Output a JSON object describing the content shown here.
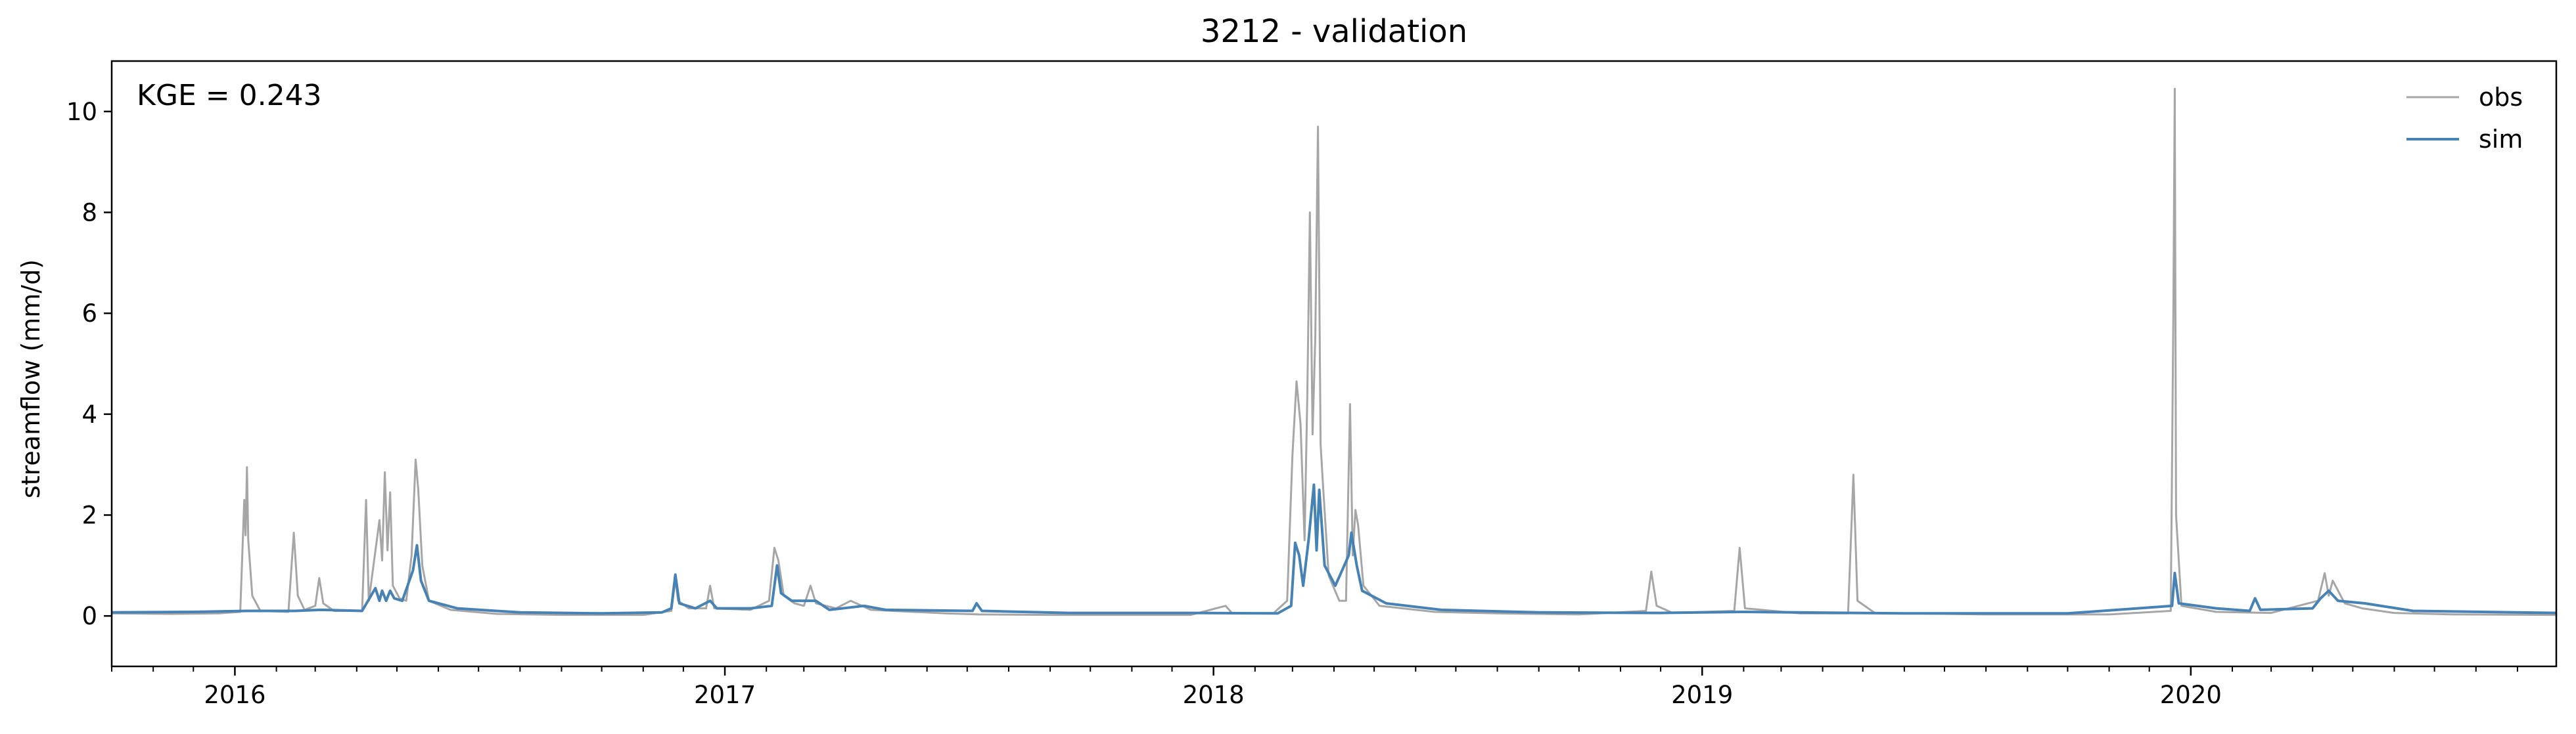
{
  "chart_data": {
    "type": "line",
    "title": "3212 - validation",
    "xlabel": "",
    "ylabel": "streamflow (mm/d)",
    "annotation": "KGE = 0.243",
    "xlim": [
      "2015-10-01",
      "2020-09-30"
    ],
    "ylim": [
      -1.0,
      11.0
    ],
    "yticks": [
      0,
      2,
      4,
      6,
      8,
      10
    ],
    "xticks": [
      {
        "date": "2016-01-01",
        "label": "2016"
      },
      {
        "date": "2017-01-01",
        "label": "2017"
      },
      {
        "date": "2018-01-01",
        "label": "2018"
      },
      {
        "date": "2019-01-01",
        "label": "2019"
      },
      {
        "date": "2020-01-01",
        "label": "2020"
      }
    ],
    "grid": false,
    "legend": {
      "position": "top-right"
    },
    "series": [
      {
        "name": "obs",
        "color": "#a6a6a6",
        "points": [
          [
            "2015-10-01",
            0.05
          ],
          [
            "2015-11-15",
            0.04
          ],
          [
            "2015-12-20",
            0.05
          ],
          [
            "2016-01-05",
            0.08
          ],
          [
            "2016-01-08",
            2.3
          ],
          [
            "2016-01-09",
            1.6
          ],
          [
            "2016-01-10",
            2.95
          ],
          [
            "2016-01-11",
            1.5
          ],
          [
            "2016-01-14",
            0.4
          ],
          [
            "2016-01-20",
            0.1
          ],
          [
            "2016-02-10",
            0.08
          ],
          [
            "2016-02-14",
            1.65
          ],
          [
            "2016-02-17",
            0.4
          ],
          [
            "2016-02-22",
            0.12
          ],
          [
            "2016-03-01",
            0.2
          ],
          [
            "2016-03-04",
            0.75
          ],
          [
            "2016-03-07",
            0.25
          ],
          [
            "2016-03-15",
            0.1
          ],
          [
            "2016-04-05",
            0.1
          ],
          [
            "2016-04-08",
            2.3
          ],
          [
            "2016-04-10",
            0.3
          ],
          [
            "2016-04-16",
            1.5
          ],
          [
            "2016-04-18",
            1.9
          ],
          [
            "2016-04-20",
            1.1
          ],
          [
            "2016-04-22",
            2.85
          ],
          [
            "2016-04-24",
            1.3
          ],
          [
            "2016-04-26",
            2.45
          ],
          [
            "2016-04-28",
            0.6
          ],
          [
            "2016-05-03",
            0.35
          ],
          [
            "2016-05-08",
            0.3
          ],
          [
            "2016-05-12",
            1.2
          ],
          [
            "2016-05-15",
            3.1
          ],
          [
            "2016-05-17",
            2.5
          ],
          [
            "2016-05-20",
            1.0
          ],
          [
            "2016-05-25",
            0.3
          ],
          [
            "2016-06-10",
            0.12
          ],
          [
            "2016-07-15",
            0.04
          ],
          [
            "2016-09-01",
            0.02
          ],
          [
            "2016-11-01",
            0.02
          ],
          [
            "2016-11-22",
            0.1
          ],
          [
            "2016-11-25",
            0.72
          ],
          [
            "2016-11-27",
            0.3
          ],
          [
            "2016-12-05",
            0.15
          ],
          [
            "2016-12-18",
            0.15
          ],
          [
            "2016-12-21",
            0.6
          ],
          [
            "2016-12-24",
            0.15
          ],
          [
            "2017-01-20",
            0.12
          ],
          [
            "2017-02-03",
            0.3
          ],
          [
            "2017-02-07",
            1.35
          ],
          [
            "2017-02-10",
            1.1
          ],
          [
            "2017-02-14",
            0.4
          ],
          [
            "2017-02-22",
            0.25
          ],
          [
            "2017-03-01",
            0.2
          ],
          [
            "2017-03-06",
            0.6
          ],
          [
            "2017-03-10",
            0.25
          ],
          [
            "2017-03-25",
            0.15
          ],
          [
            "2017-04-05",
            0.3
          ],
          [
            "2017-04-20",
            0.12
          ],
          [
            "2017-06-15",
            0.05
          ],
          [
            "2017-07-10",
            0.03
          ],
          [
            "2017-09-01",
            0.02
          ],
          [
            "2017-12-15",
            0.02
          ],
          [
            "2018-01-10",
            0.2
          ],
          [
            "2018-01-15",
            0.05
          ],
          [
            "2018-02-15",
            0.06
          ],
          [
            "2018-02-25",
            0.3
          ],
          [
            "2018-03-01",
            3.2
          ],
          [
            "2018-03-04",
            4.65
          ],
          [
            "2018-03-07",
            3.8
          ],
          [
            "2018-03-10",
            1.5
          ],
          [
            "2018-03-12",
            4.3
          ],
          [
            "2018-03-14",
            8.0
          ],
          [
            "2018-03-16",
            3.6
          ],
          [
            "2018-03-18",
            5.5
          ],
          [
            "2018-03-20",
            9.7
          ],
          [
            "2018-03-22",
            3.4
          ],
          [
            "2018-03-24",
            2.5
          ],
          [
            "2018-03-28",
            0.8
          ],
          [
            "2018-04-05",
            0.3
          ],
          [
            "2018-04-10",
            0.3
          ],
          [
            "2018-04-13",
            4.2
          ],
          [
            "2018-04-15",
            1.2
          ],
          [
            "2018-04-17",
            2.1
          ],
          [
            "2018-04-19",
            1.8
          ],
          [
            "2018-04-23",
            0.6
          ],
          [
            "2018-05-05",
            0.2
          ],
          [
            "2018-06-15",
            0.08
          ],
          [
            "2018-08-01",
            0.05
          ],
          [
            "2018-10-01",
            0.03
          ],
          [
            "2018-11-20",
            0.1
          ],
          [
            "2018-11-24",
            0.88
          ],
          [
            "2018-11-28",
            0.2
          ],
          [
            "2018-12-10",
            0.06
          ],
          [
            "2019-01-25",
            0.1
          ],
          [
            "2019-01-29",
            1.35
          ],
          [
            "2019-02-02",
            0.15
          ],
          [
            "2019-03-15",
            0.05
          ],
          [
            "2019-04-20",
            0.05
          ],
          [
            "2019-04-24",
            2.8
          ],
          [
            "2019-04-27",
            0.3
          ],
          [
            "2019-05-10",
            0.06
          ],
          [
            "2019-08-01",
            0.03
          ],
          [
            "2019-11-01",
            0.03
          ],
          [
            "2019-12-17",
            0.1
          ],
          [
            "2019-12-19",
            6.0
          ],
          [
            "2019-12-20",
            10.45
          ],
          [
            "2019-12-21",
            2.0
          ],
          [
            "2019-12-25",
            0.2
          ],
          [
            "2020-01-20",
            0.08
          ],
          [
            "2020-03-01",
            0.06
          ],
          [
            "2020-04-05",
            0.3
          ],
          [
            "2020-04-10",
            0.85
          ],
          [
            "2020-04-13",
            0.4
          ],
          [
            "2020-04-16",
            0.7
          ],
          [
            "2020-04-25",
            0.25
          ],
          [
            "2020-05-08",
            0.15
          ],
          [
            "2020-06-01",
            0.06
          ],
          [
            "2020-07-15",
            0.03
          ],
          [
            "2020-09-30",
            0.02
          ]
        ]
      },
      {
        "name": "sim",
        "color": "#4682b4",
        "points": [
          [
            "2015-10-01",
            0.07
          ],
          [
            "2015-12-01",
            0.08
          ],
          [
            "2016-01-10",
            0.1
          ],
          [
            "2016-02-15",
            0.1
          ],
          [
            "2016-03-05",
            0.12
          ],
          [
            "2016-04-05",
            0.1
          ],
          [
            "2016-04-15",
            0.55
          ],
          [
            "2016-04-18",
            0.3
          ],
          [
            "2016-04-20",
            0.5
          ],
          [
            "2016-04-23",
            0.3
          ],
          [
            "2016-04-26",
            0.5
          ],
          [
            "2016-04-29",
            0.35
          ],
          [
            "2016-05-05",
            0.3
          ],
          [
            "2016-05-13",
            0.9
          ],
          [
            "2016-05-16",
            1.4
          ],
          [
            "2016-05-19",
            0.7
          ],
          [
            "2016-05-25",
            0.3
          ],
          [
            "2016-06-15",
            0.15
          ],
          [
            "2016-08-01",
            0.07
          ],
          [
            "2016-10-01",
            0.05
          ],
          [
            "2016-11-15",
            0.07
          ],
          [
            "2016-11-22",
            0.15
          ],
          [
            "2016-11-25",
            0.82
          ],
          [
            "2016-11-28",
            0.25
          ],
          [
            "2016-12-10",
            0.15
          ],
          [
            "2016-12-21",
            0.3
          ],
          [
            "2016-12-26",
            0.15
          ],
          [
            "2017-01-20",
            0.15
          ],
          [
            "2017-02-05",
            0.2
          ],
          [
            "2017-02-09",
            1.0
          ],
          [
            "2017-02-12",
            0.45
          ],
          [
            "2017-02-20",
            0.3
          ],
          [
            "2017-03-10",
            0.3
          ],
          [
            "2017-03-20",
            0.12
          ],
          [
            "2017-04-15",
            0.2
          ],
          [
            "2017-05-01",
            0.12
          ],
          [
            "2017-07-05",
            0.1
          ],
          [
            "2017-07-08",
            0.25
          ],
          [
            "2017-07-12",
            0.1
          ],
          [
            "2017-09-15",
            0.06
          ],
          [
            "2017-12-15",
            0.06
          ],
          [
            "2018-02-18",
            0.05
          ],
          [
            "2018-02-28",
            0.2
          ],
          [
            "2018-03-03",
            1.45
          ],
          [
            "2018-03-06",
            1.2
          ],
          [
            "2018-03-09",
            0.6
          ],
          [
            "2018-03-13",
            1.5
          ],
          [
            "2018-03-17",
            2.6
          ],
          [
            "2018-03-19",
            1.3
          ],
          [
            "2018-03-21",
            2.5
          ],
          [
            "2018-03-25",
            1.0
          ],
          [
            "2018-04-02",
            0.6
          ],
          [
            "2018-04-12",
            1.2
          ],
          [
            "2018-04-14",
            1.65
          ],
          [
            "2018-04-18",
            1.0
          ],
          [
            "2018-04-22",
            0.5
          ],
          [
            "2018-05-10",
            0.25
          ],
          [
            "2018-06-20",
            0.12
          ],
          [
            "2018-09-01",
            0.07
          ],
          [
            "2018-12-01",
            0.06
          ],
          [
            "2019-02-01",
            0.08
          ],
          [
            "2019-06-01",
            0.05
          ],
          [
            "2019-10-01",
            0.05
          ],
          [
            "2019-12-18",
            0.2
          ],
          [
            "2019-12-20",
            0.85
          ],
          [
            "2019-12-23",
            0.25
          ],
          [
            "2020-01-20",
            0.15
          ],
          [
            "2020-02-14",
            0.1
          ],
          [
            "2020-02-18",
            0.35
          ],
          [
            "2020-02-22",
            0.12
          ],
          [
            "2020-04-01",
            0.15
          ],
          [
            "2020-04-07",
            0.35
          ],
          [
            "2020-04-13",
            0.5
          ],
          [
            "2020-04-20",
            0.3
          ],
          [
            "2020-05-10",
            0.25
          ],
          [
            "2020-06-15",
            0.1
          ],
          [
            "2020-09-30",
            0.06
          ]
        ]
      }
    ]
  }
}
